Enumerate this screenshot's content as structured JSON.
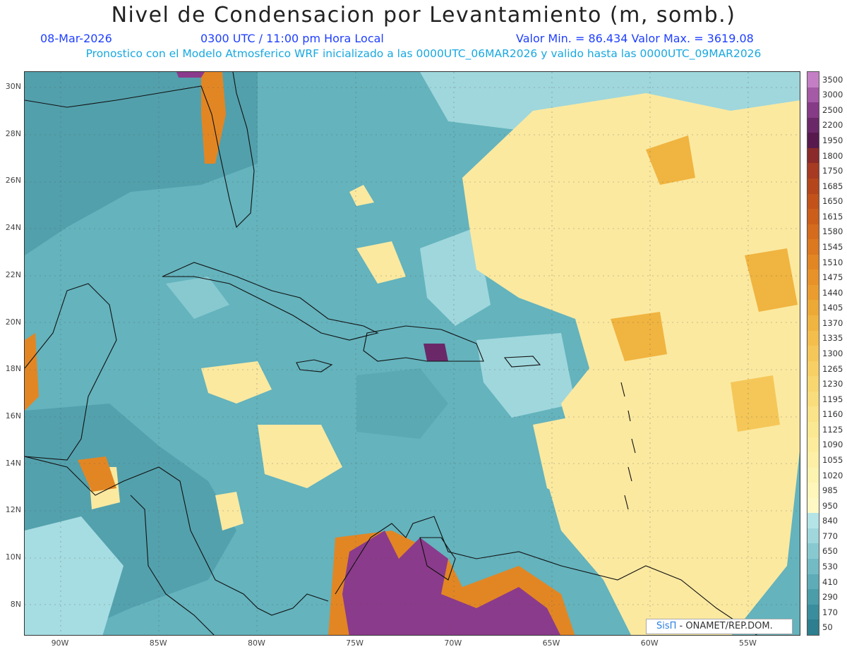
{
  "title": "Nivel de Condensacion por Levantamiento (m, somb.)",
  "date": "08-Mar-2026",
  "time": "0300 UTC / 11:00 pm Hora Local",
  "minmax": "Valor Min. = 86.434   Valor Max. = 3619.08",
  "forecast": "Pronostico con el Modelo Atmosferico WRF inicializado a las 0000UTC_06MAR2026 y valido hasta las  0000UTC_09MAR2026",
  "lat_labels": [
    "30N",
    "28N",
    "26N",
    "24N",
    "22N",
    "20N",
    "18N",
    "16N",
    "14N",
    "12N",
    "10N",
    "8N"
  ],
  "lon_labels": [
    "90W",
    "85W",
    "80W",
    "75W",
    "70W",
    "65W",
    "60W",
    "55W"
  ],
  "colorbar": {
    "labels": [
      "3500",
      "3000",
      "2500",
      "2200",
      "1950",
      "1800",
      "1750",
      "1685",
      "1650",
      "1615",
      "1580",
      "1545",
      "1510",
      "1475",
      "1440",
      "1405",
      "1370",
      "1335",
      "1300",
      "1265",
      "1230",
      "1195",
      "1160",
      "1125",
      "1090",
      "1055",
      "1020",
      "985",
      "950",
      "840",
      "770",
      "650",
      "530",
      "410",
      "290",
      "170",
      "50"
    ],
    "colors": [
      "#c47fc4",
      "#a45aa4",
      "#863b86",
      "#6b2869",
      "#581a4e",
      "#8b2a2a",
      "#a63a22",
      "#b5461c",
      "#c2521a",
      "#cc5e1b",
      "#d56b1d",
      "#dc7820",
      "#e28624",
      "#e79228",
      "#ea9d2e",
      "#eda936",
      "#f0b440",
      "#f3be4c",
      "#f5c758",
      "#f7cf64",
      "#f8d670",
      "#f9dd7c",
      "#faE388",
      "#fbe892",
      "#fcec9c",
      "#fdf0a6",
      "#fdf3b0",
      "#fef6ba",
      "#fef8c4",
      "#b4e4e6",
      "#9fd7dc",
      "#88c9d0",
      "#72bbc4",
      "#5eacb7",
      "#4b9daa",
      "#3a8d9c",
      "#2d7e8e"
    ]
  },
  "credit": {
    "brand": "SisΠ",
    "rest": " - ONAMET/REP.DOM."
  }
}
